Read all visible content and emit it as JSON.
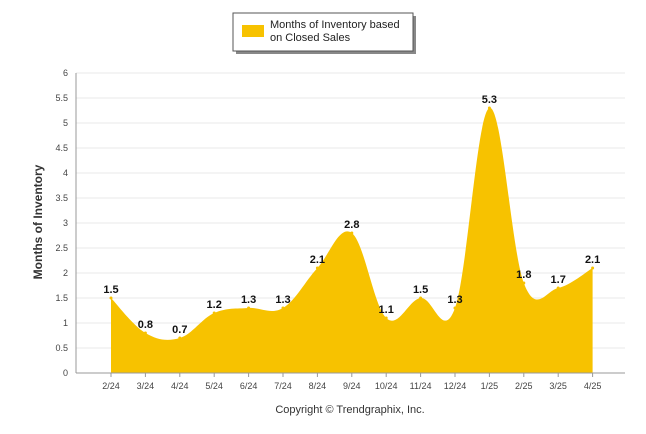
{
  "chart_data": {
    "type": "area",
    "categories": [
      "2/24",
      "3/24",
      "4/24",
      "5/24",
      "6/24",
      "7/24",
      "8/24",
      "9/24",
      "10/24",
      "11/24",
      "12/24",
      "1/25",
      "2/25",
      "3/25",
      "4/25"
    ],
    "series": [
      {
        "name": "Months of Inventory based on Closed Sales",
        "values": [
          1.5,
          0.8,
          0.7,
          1.2,
          1.3,
          1.3,
          2.1,
          2.8,
          1.1,
          1.5,
          1.3,
          5.3,
          1.8,
          1.7,
          2.1
        ]
      }
    ],
    "legend": [
      "Months of Inventory based",
      "on Closed Sales"
    ],
    "legend_position": "top-center",
    "ylabel": "Months of Inventory",
    "ylim": [
      0,
      6
    ],
    "yticks": [
      "0",
      "0.5",
      "1",
      "1.5",
      "2",
      "2.5",
      "3",
      "3.5",
      "4",
      "4.5",
      "5",
      "5.5",
      "6"
    ],
    "grid": true,
    "color": "#F7C200"
  },
  "footer": {
    "copyright": "Copyright © Trendgraphix, Inc."
  }
}
